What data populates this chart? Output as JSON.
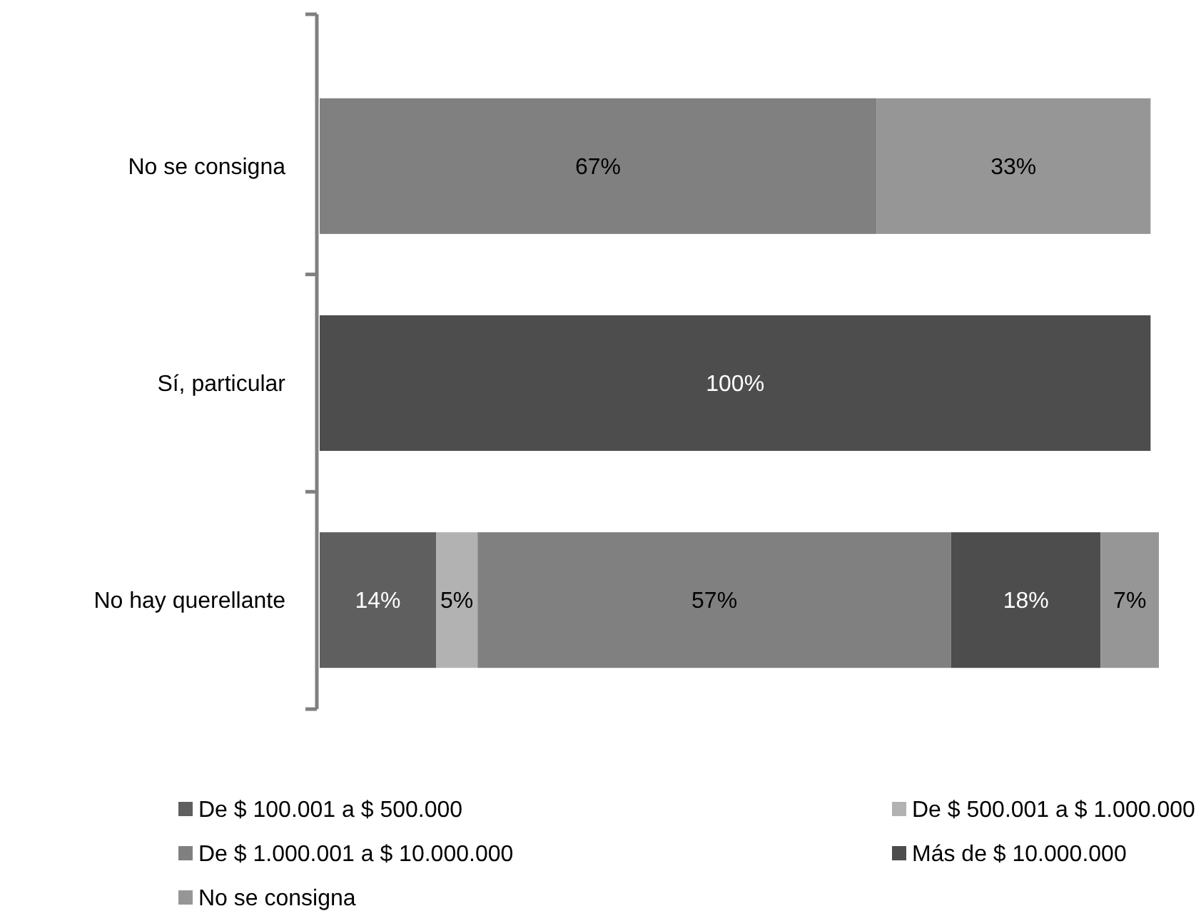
{
  "chart_data": {
    "type": "bar",
    "orientation": "horizontal",
    "stacked": true,
    "categories": [
      "No se consigna",
      "Sí, particular",
      "No hay querellante"
    ],
    "series": [
      {
        "name": "De $ 100.001 a $ 500.000",
        "color": "#5f5f5f",
        "values": [
          null,
          null,
          14
        ],
        "value_labels": [
          null,
          null,
          "14%"
        ]
      },
      {
        "name": "De $ 500.001 a $ 1.000.000",
        "color": "#b2b2b2",
        "values": [
          null,
          null,
          5
        ],
        "value_labels": [
          null,
          null,
          "5%"
        ]
      },
      {
        "name": "De $ 1.000.001 a $ 10.000.000",
        "color": "#808080",
        "values": [
          67,
          null,
          57
        ],
        "value_labels": [
          "67%",
          null,
          "57%"
        ]
      },
      {
        "name": "Más de $ 10.000.000",
        "color": "#4d4d4d",
        "values": [
          null,
          100,
          18
        ],
        "value_labels": [
          null,
          "100%",
          "18%"
        ]
      },
      {
        "name": "No se consigna",
        "color": "#969696",
        "values": [
          33,
          null,
          7
        ],
        "value_labels": [
          "33%",
          null,
          "7%"
        ]
      }
    ],
    "legend": "bottom"
  }
}
